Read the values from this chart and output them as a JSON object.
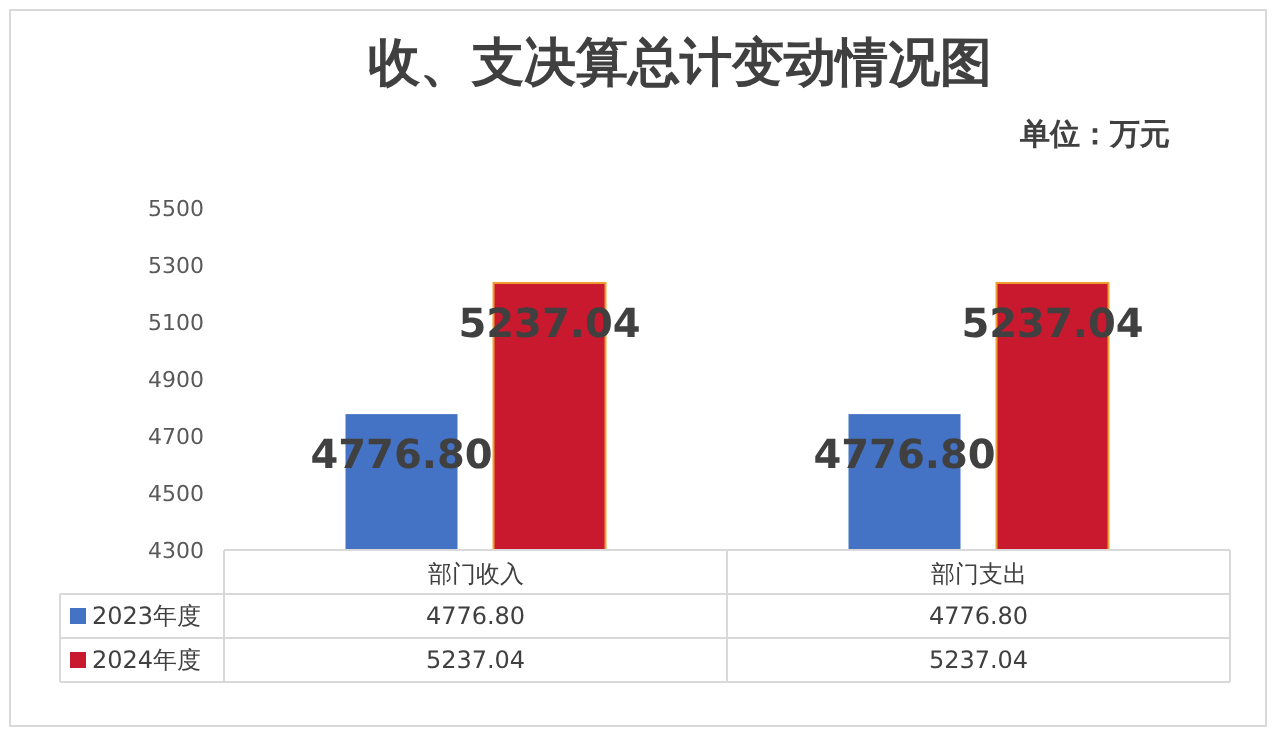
{
  "chart_data": {
    "type": "bar",
    "title": "收、支决算总计变动情况图",
    "subtitle": "单位：万元",
    "categories": [
      "部门收入",
      "部门支出"
    ],
    "series": [
      {
        "name": "2023年度",
        "color": "#4472c4",
        "values": [
          4776.8,
          4776.8
        ],
        "value_labels": [
          "4776.80",
          "4776.80"
        ]
      },
      {
        "name": "2024年度",
        "color": "#c8192e",
        "values": [
          5237.04,
          5237.04
        ],
        "value_labels": [
          "5237.04",
          "5237.04"
        ]
      }
    ],
    "ylim": [
      4300,
      5500
    ],
    "yticks": [
      4300,
      4500,
      4700,
      4900,
      5100,
      5300,
      5500
    ],
    "legend": "bottom left"
  }
}
